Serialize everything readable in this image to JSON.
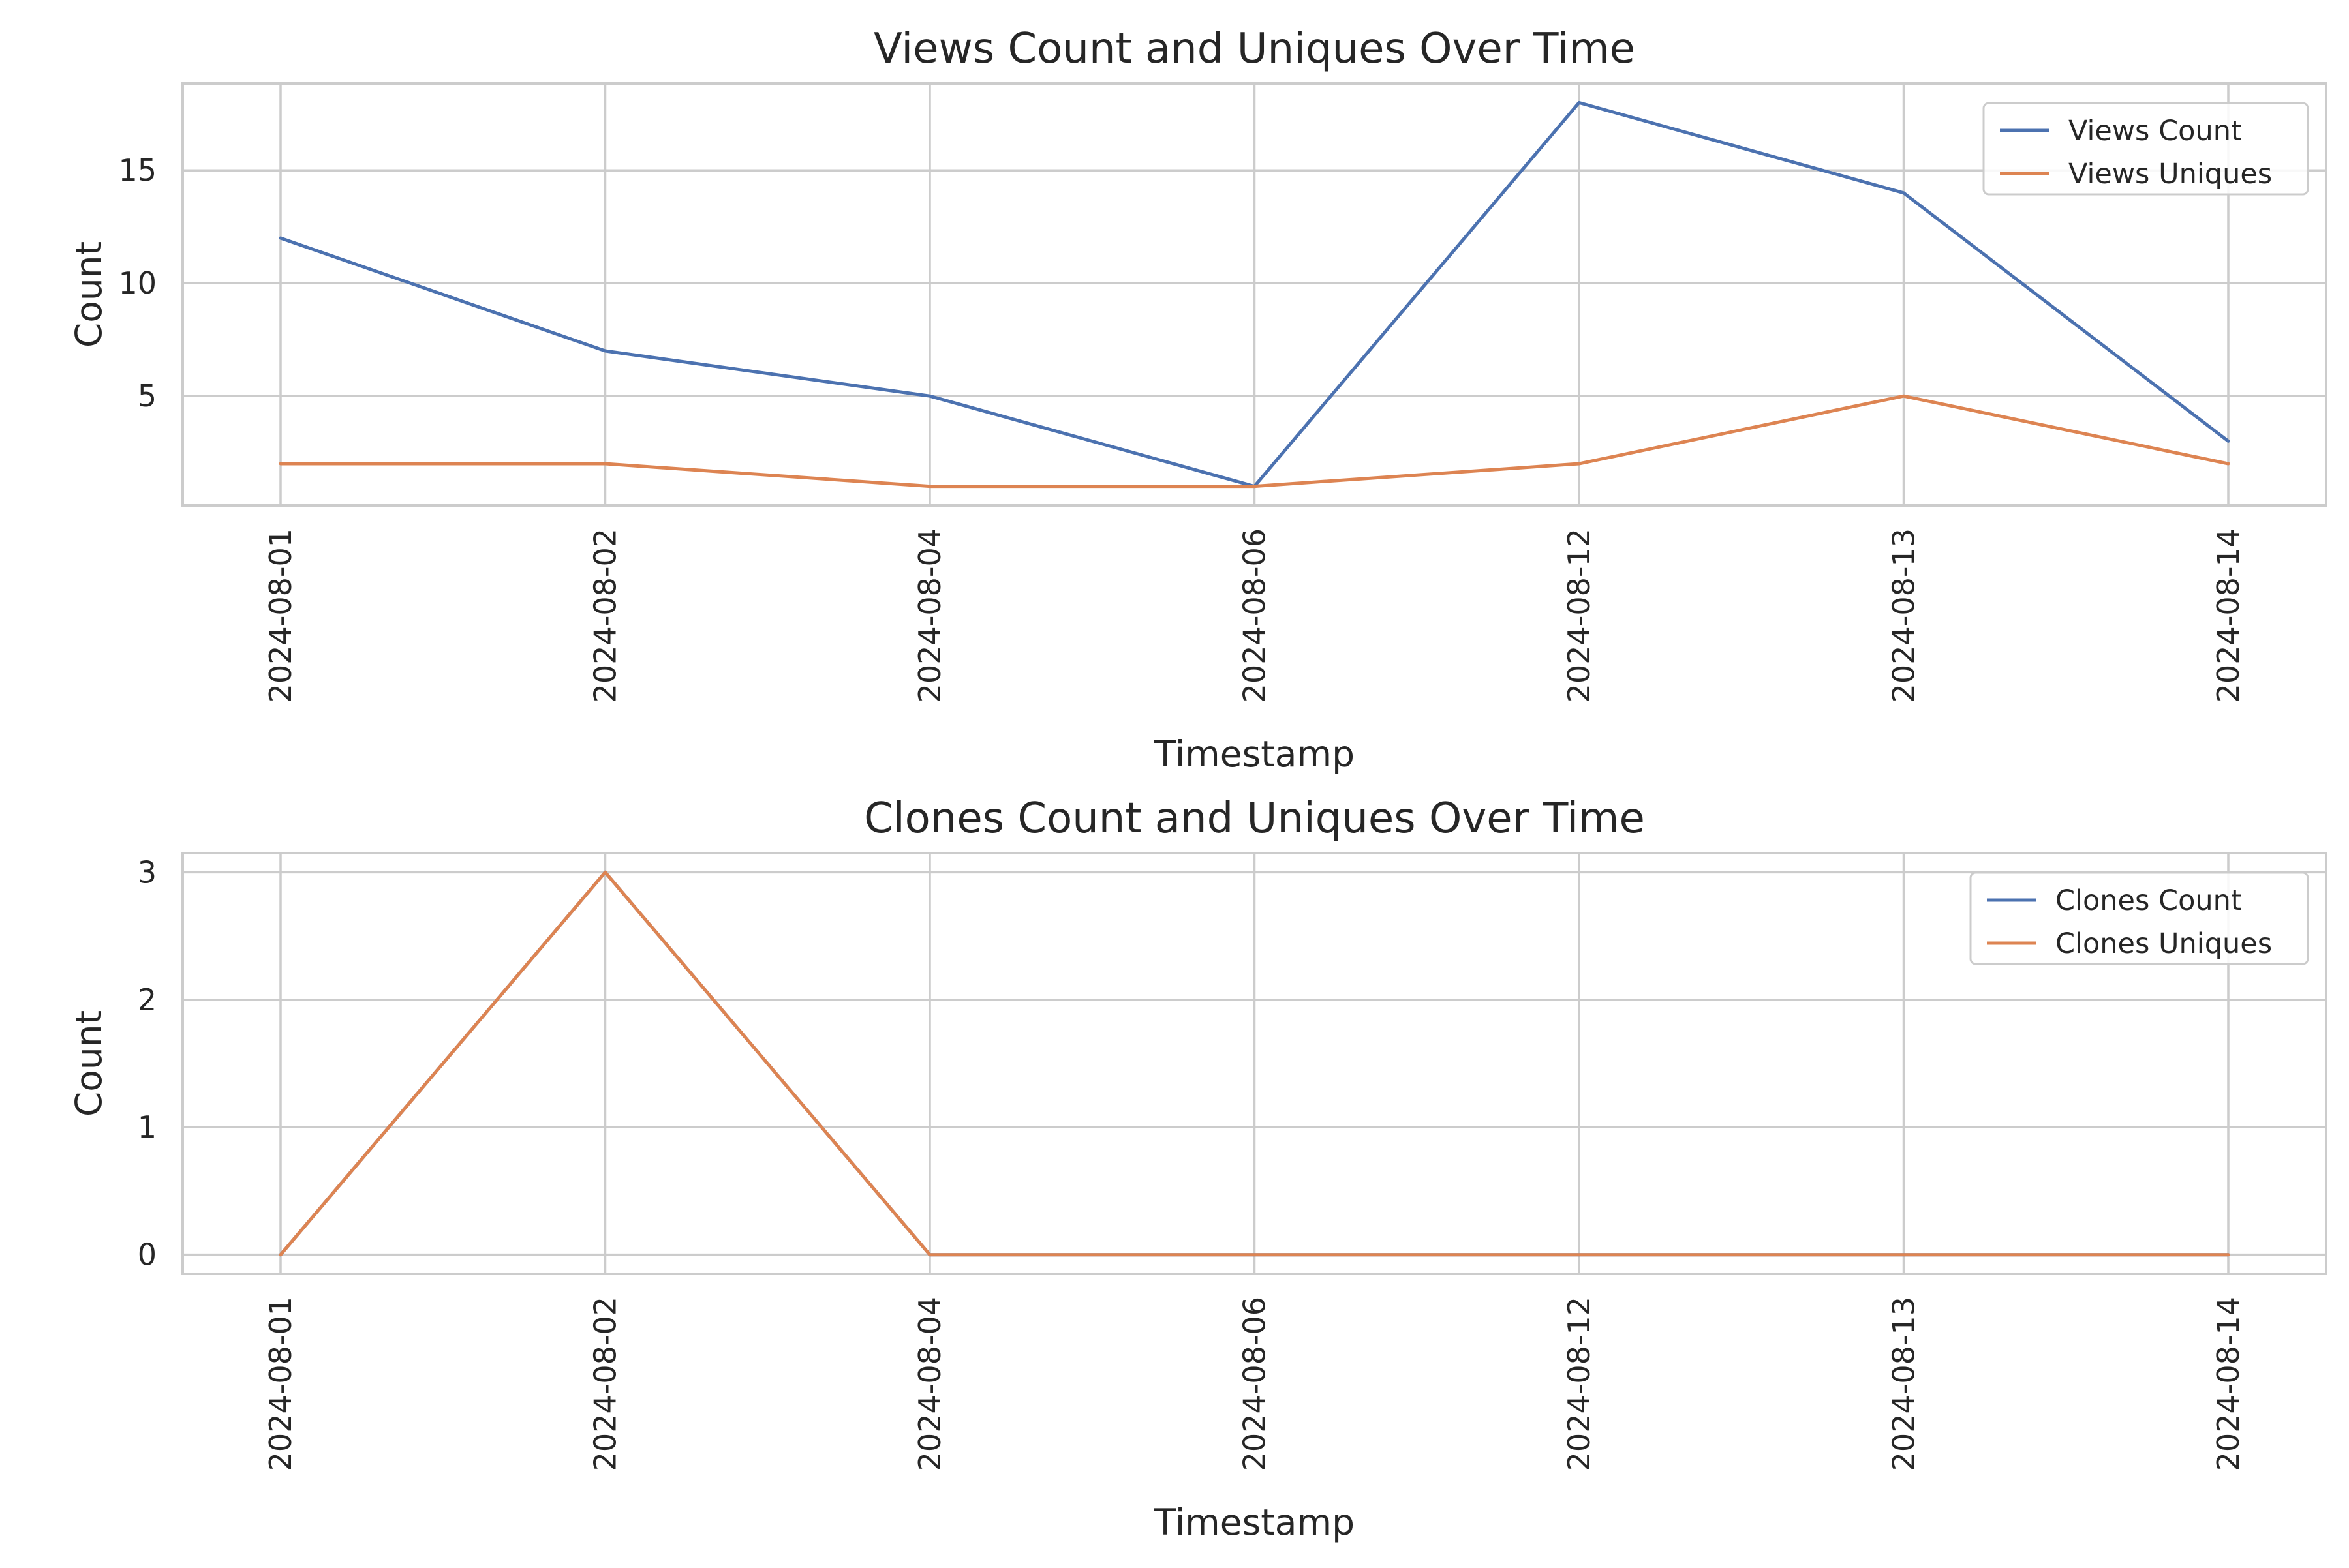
{
  "colors": {
    "series1": "#4c72b0",
    "series2": "#dd8452"
  },
  "chart_data": [
    {
      "type": "line",
      "title": "Views Count and Uniques Over Time",
      "xlabel": "Timestamp",
      "ylabel": "Count",
      "x": [
        "2024-08-01",
        "2024-08-02",
        "2024-08-04",
        "2024-08-06",
        "2024-08-12",
        "2024-08-13",
        "2024-08-14"
      ],
      "yticks": [
        5,
        10,
        15
      ],
      "ylim": [
        0.15,
        18.85
      ],
      "grid": true,
      "legend_position": "top-right",
      "series": [
        {
          "name": "Views Count",
          "values": [
            12,
            7,
            5,
            1,
            18,
            14,
            3
          ]
        },
        {
          "name": "Views Uniques",
          "values": [
            2,
            2,
            1,
            1,
            2,
            5,
            2
          ]
        }
      ]
    },
    {
      "type": "line",
      "title": "Clones Count and Uniques Over Time",
      "xlabel": "Timestamp",
      "ylabel": "Count",
      "x": [
        "2024-08-01",
        "2024-08-02",
        "2024-08-04",
        "2024-08-06",
        "2024-08-12",
        "2024-08-13",
        "2024-08-14"
      ],
      "yticks": [
        0,
        1,
        2,
        3
      ],
      "ylim": [
        -0.15,
        3.15
      ],
      "grid": true,
      "legend_position": "top-right",
      "series": [
        {
          "name": "Clones Count",
          "values": [
            0,
            3,
            0,
            0,
            0,
            0,
            0
          ]
        },
        {
          "name": "Clones Uniques",
          "values": [
            0,
            3,
            0,
            0,
            0,
            0,
            0
          ]
        }
      ]
    }
  ]
}
